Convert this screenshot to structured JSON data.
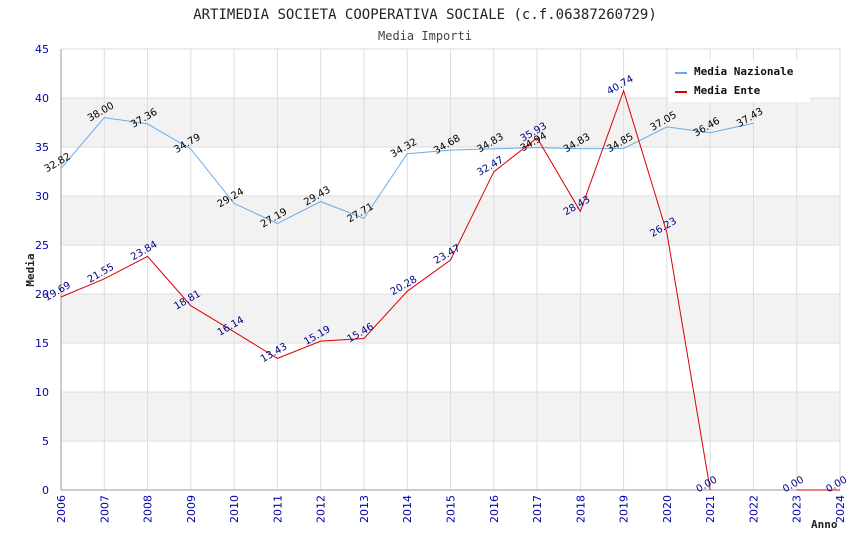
{
  "chart_data": {
    "type": "line",
    "title": "ARTIMEDIA SOCIETA COOPERATIVA SOCIALE (c.f.06387260729)",
    "subtitle": "Media Importi",
    "xlabel": "Anno",
    "ylabel": "Media",
    "ylim": [
      0,
      45
    ],
    "yticks": [
      "0",
      "5",
      "10",
      "15",
      "20",
      "25",
      "30",
      "35",
      "40",
      "45"
    ],
    "x": [
      "2006",
      "2007",
      "2008",
      "2009",
      "2010",
      "2011",
      "2012",
      "2013",
      "2014",
      "2015",
      "2016",
      "2017",
      "2018",
      "2019",
      "2020",
      "2021",
      "2022",
      "2023",
      "2024"
    ],
    "grid": true,
    "legend_position": "top-right",
    "series": [
      {
        "name": "Media Nazionale",
        "color": "#66aaee",
        "label_color": "#000000",
        "values": [
          32.82,
          38.0,
          37.36,
          34.79,
          29.24,
          27.19,
          29.43,
          27.71,
          34.32,
          34.68,
          34.83,
          34.94,
          34.83,
          34.85,
          37.05,
          36.46,
          37.43,
          null,
          null
        ],
        "labels": [
          "32.82",
          "38.00",
          "37.36",
          "34.79",
          "29.24",
          "27.19",
          "29.43",
          "27.71",
          "34.32",
          "34.68",
          "34.83",
          "34.94",
          "34.83",
          "34.85",
          "37.05",
          "36.46",
          "37.43",
          null,
          null
        ]
      },
      {
        "name": "Media Ente",
        "color": "#dd0000",
        "label_color": "#000088",
        "values": [
          19.69,
          21.55,
          23.84,
          18.81,
          16.14,
          13.43,
          15.19,
          15.46,
          20.28,
          23.47,
          32.47,
          35.93,
          28.43,
          40.74,
          26.23,
          0.0,
          null,
          0.0,
          0.0
        ],
        "labels": [
          "19.69",
          "21.55",
          "23.84",
          "18.81",
          "16.14",
          "13.43",
          "15.19",
          "15.46",
          "20.28",
          "23.47",
          "32.47",
          "35.93",
          "28.43",
          "40.74",
          "26.23",
          "0.00",
          null,
          "0.00",
          "0.00"
        ]
      }
    ]
  }
}
